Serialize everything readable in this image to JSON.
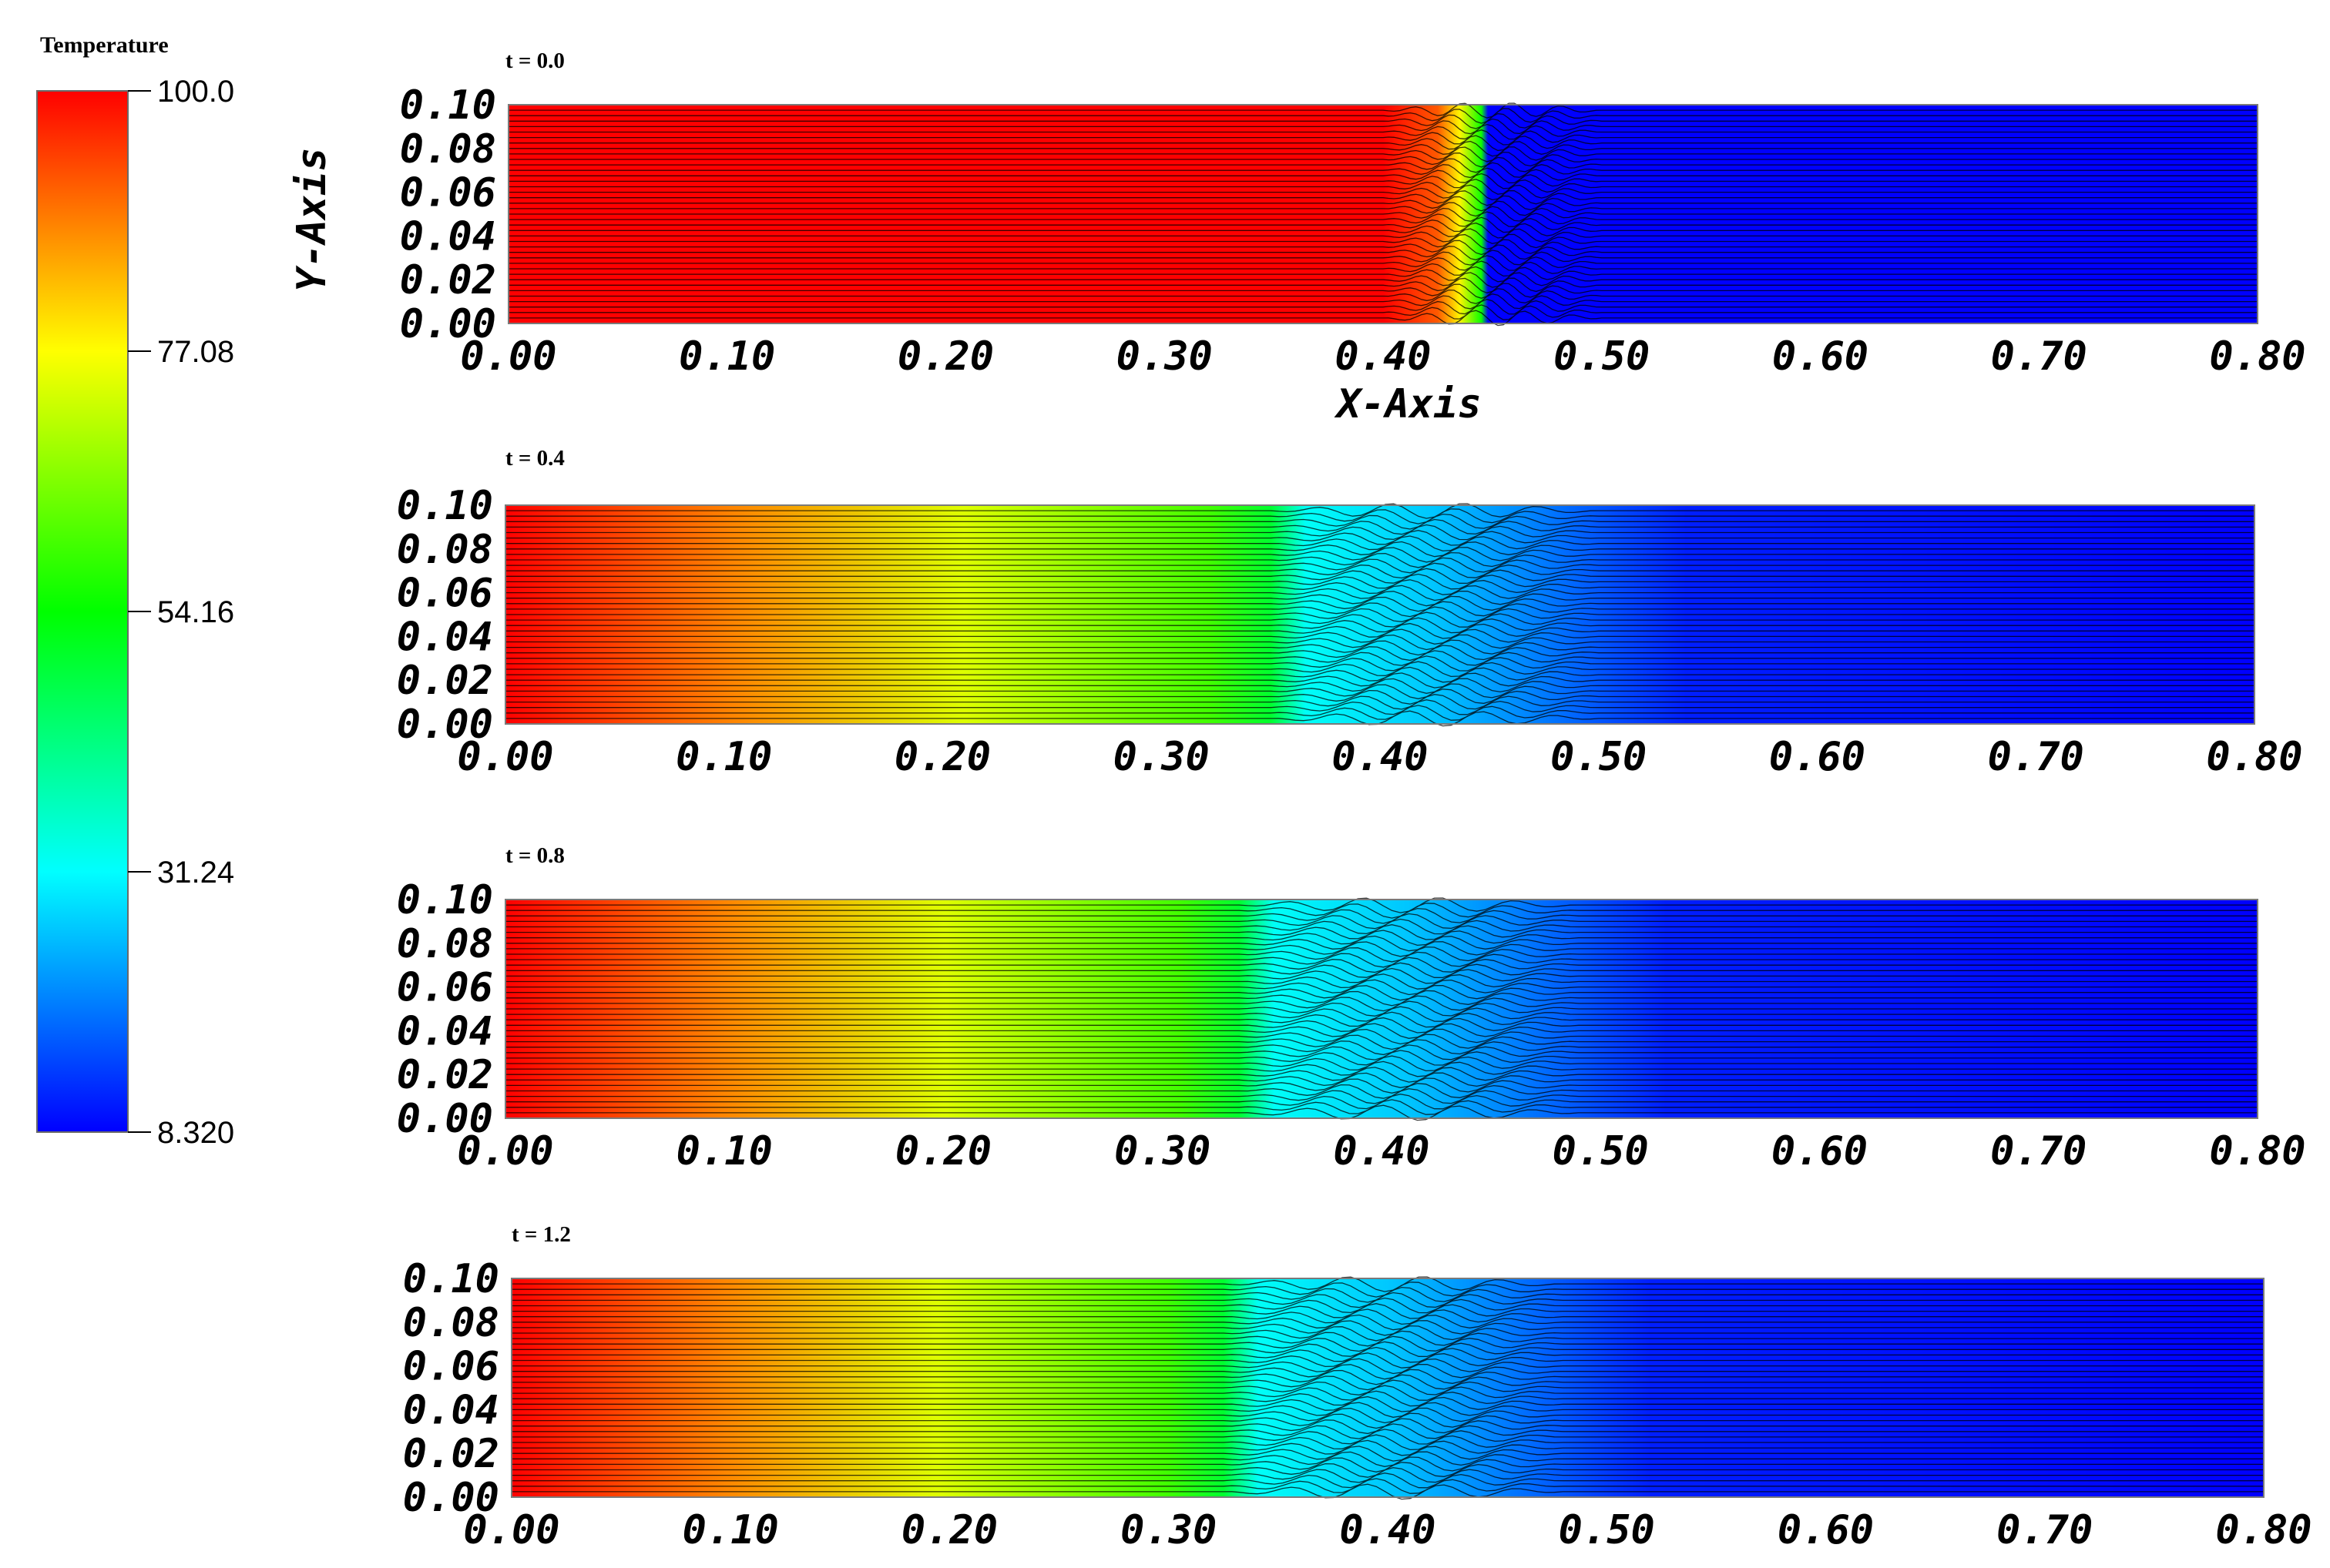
{
  "chart_data": {
    "type": "heatmap",
    "colorbar": {
      "title": "Temperature",
      "ticks": [
        "100.0",
        "77.08",
        "54.16",
        "31.24",
        "8.320"
      ],
      "min": 8.32,
      "max": 100.0,
      "colormap": [
        "#0000ff",
        "#00ffff",
        "#00ff00",
        "#ffff00",
        "#ff0000"
      ]
    },
    "xlabel": "X-Axis",
    "ylabel": "Y-Axis",
    "x_ticks": [
      "0.00",
      "0.10",
      "0.20",
      "0.30",
      "0.40",
      "0.50",
      "0.60",
      "0.70",
      "0.80"
    ],
    "y_ticks": [
      "0.00",
      "0.02",
      "0.04",
      "0.06",
      "0.08",
      "0.10"
    ],
    "xlim": [
      0.0,
      0.8
    ],
    "ylim": [
      0.0,
      0.1
    ],
    "panels": [
      {
        "title": "t = 0.0",
        "t": 0.0,
        "front_x": 0.44,
        "mixing_zone": [
          0.4,
          0.5
        ],
        "hot_temp": 100.0,
        "cold_temp": 8.32,
        "show_xlabel": true,
        "show_ylabel": true
      },
      {
        "title": "t = 0.4",
        "t": 0.4,
        "front_x": 0.35,
        "mixing_zone": [
          0.35,
          0.5
        ],
        "hot_temp": 100.0,
        "cold_temp": 8.32,
        "show_xlabel": false,
        "show_ylabel": false
      },
      {
        "title": "t = 0.8",
        "t": 0.8,
        "front_x": 0.335,
        "mixing_zone": [
          0.335,
          0.49
        ],
        "hot_temp": 100.0,
        "cold_temp": 8.32,
        "show_xlabel": false,
        "show_ylabel": false
      },
      {
        "title": "t = 1.2",
        "t": 1.2,
        "front_x": 0.325,
        "mixing_zone": [
          0.325,
          0.48
        ],
        "hot_temp": 100.0,
        "cold_temp": 8.32,
        "show_xlabel": false,
        "show_ylabel": false
      }
    ]
  }
}
